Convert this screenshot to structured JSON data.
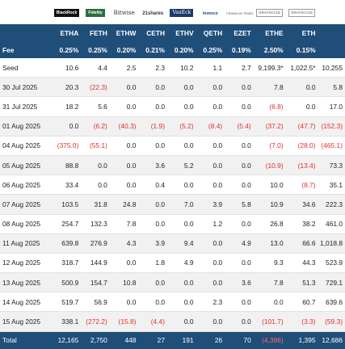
{
  "logos": [
    {
      "name": "blackrock-logo",
      "text": "BlackRock"
    },
    {
      "name": "fidelity-logo",
      "text": "Fidelity"
    },
    {
      "name": "bitwise-logo",
      "text": "Bitwise"
    },
    {
      "name": "21shares-logo",
      "text": "21shares"
    },
    {
      "name": "vaneck-logo",
      "text": "VanEck"
    },
    {
      "name": "invesco-logo",
      "text": "Invesco"
    },
    {
      "name": "franklin-logo",
      "text": "FRANKLIN TEMPLETON"
    },
    {
      "name": "grayscale-logo-ethe",
      "text": "GRAYSCALE"
    },
    {
      "name": "grayscale-logo-eth",
      "text": "GRAYSCALE"
    }
  ],
  "header": {
    "total_label": "Total",
    "tickers": [
      "ETHA",
      "FETH",
      "ETHW",
      "CETH",
      "ETHV",
      "QETH",
      "EZET",
      "ETHE",
      "ETH"
    ]
  },
  "fee_row": {
    "label": "Fee",
    "values": [
      "0.25%",
      "0.25%",
      "0.20%",
      "0.21%",
      "0.20%",
      "0.25%",
      "0.19%",
      "2.50%",
      "0.15%"
    ]
  },
  "rows": [
    {
      "label": "Seed",
      "values": [
        "10.6",
        "4.4",
        "2.5",
        "2.3",
        "10.2",
        "1.1",
        "2.7",
        "9,199.3*",
        "1,022.5*"
      ],
      "total": "10,255"
    },
    {
      "label": "30 Jul 2025",
      "values": [
        "20.3",
        "(22.3)",
        "0.0",
        "0.0",
        "0.0",
        "0.0",
        "0.0",
        "7.8",
        "0.0"
      ],
      "total": "5.8"
    },
    {
      "label": "31 Jul 2025",
      "values": [
        "18.2",
        "5.6",
        "0.0",
        "0.0",
        "0.0",
        "0.0",
        "0.0",
        "(6.8)",
        "0.0"
      ],
      "total": "17.0"
    },
    {
      "label": "01 Aug 2025",
      "values": [
        "0.0",
        "(6.2)",
        "(40.3)",
        "(1.9)",
        "(5.2)",
        "(8.4)",
        "(5.4)",
        "(37.2)",
        "(47.7)"
      ],
      "total": "(152.3)"
    },
    {
      "label": "04 Aug 2025",
      "values": [
        "(375.0)",
        "(55.1)",
        "0.0",
        "0.0",
        "0.0",
        "0.0",
        "0.0",
        "(7.0)",
        "(28.0)"
      ],
      "total": "(465.1)"
    },
    {
      "label": "05 Aug 2025",
      "values": [
        "88.8",
        "0.0",
        "0.0",
        "3.6",
        "5.2",
        "0.0",
        "0.0",
        "(10.9)",
        "(13.4)"
      ],
      "total": "73.3"
    },
    {
      "label": "06 Aug 2025",
      "values": [
        "33.4",
        "0.0",
        "0.0",
        "0.4",
        "0.0",
        "0.0",
        "0.0",
        "10.0",
        "(8.7)"
      ],
      "total": "35.1"
    },
    {
      "label": "07 Aug 2025",
      "values": [
        "103.5",
        "31.8",
        "24.8",
        "0.0",
        "7.0",
        "3.9",
        "5.8",
        "10.9",
        "34.6"
      ],
      "total": "222.3"
    },
    {
      "label": "08 Aug 2025",
      "values": [
        "254.7",
        "132.3",
        "7.8",
        "0.0",
        "0.0",
        "1.2",
        "0.0",
        "26.8",
        "38.2"
      ],
      "total": "461.0"
    },
    {
      "label": "11 Aug 2025",
      "values": [
        "639.8",
        "276.9",
        "4.3",
        "3.9",
        "9.4",
        "0.0",
        "4.9",
        "13.0",
        "66.6"
      ],
      "total": "1,018.8"
    },
    {
      "label": "12 Aug 2025",
      "values": [
        "318.7",
        "144.9",
        "0.0",
        "1.8",
        "4.9",
        "0.0",
        "0.0",
        "9.3",
        "44.3"
      ],
      "total": "523.9"
    },
    {
      "label": "13 Aug 2025",
      "values": [
        "500.9",
        "154.7",
        "10.8",
        "0.0",
        "0.0",
        "0.0",
        "3.6",
        "7.8",
        "51.3"
      ],
      "total": "729.1"
    },
    {
      "label": "14 Aug 2025",
      "values": [
        "519.7",
        "56.9",
        "0.0",
        "0.0",
        "0.0",
        "2.3",
        "0.0",
        "0.0",
        "60.7"
      ],
      "total": "639.6"
    },
    {
      "label": "15 Aug 2025",
      "values": [
        "338.1",
        "(272.2)",
        "(15.8)",
        "(4.4)",
        "0.0",
        "0.0",
        "0.0",
        "(101.7)",
        "(3.3)"
      ],
      "total": "(59.3)"
    }
  ],
  "total_row": {
    "label": "Total",
    "values": [
      "12,165",
      "2,750",
      "448",
      "27",
      "191",
      "26",
      "70",
      "(4,386)",
      "1,395"
    ],
    "total": "12,686"
  },
  "colors": {
    "header_bg": "#1f4e79",
    "negative": "#e03030",
    "alt_row": "#f1f1f1"
  }
}
